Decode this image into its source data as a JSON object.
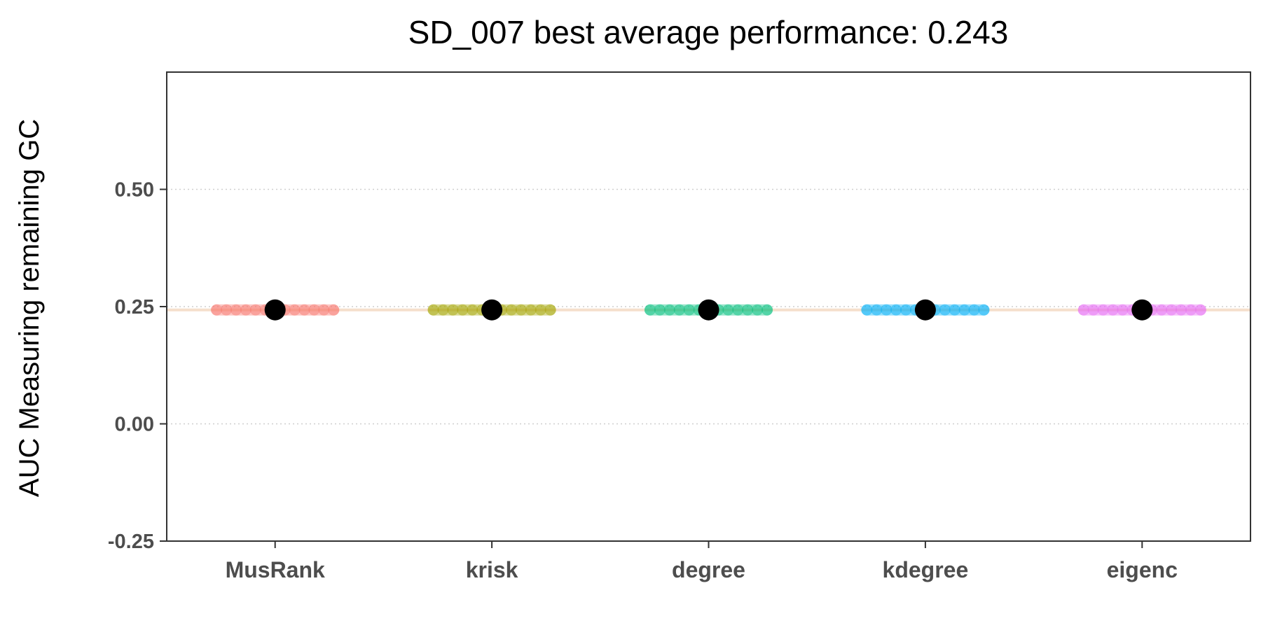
{
  "chart_data": {
    "type": "scatter",
    "title": "SD_007 best average performance: 0.243",
    "xlabel": "",
    "ylabel": "AUC Measuring remaining GC",
    "categories": [
      "MusRank",
      "krisk",
      "degree",
      "kdegree",
      "eigenc"
    ],
    "ylim": [
      -0.25,
      0.75
    ],
    "yticks": [
      -0.25,
      0.0,
      0.25,
      0.5
    ],
    "ytick_labels": [
      "-0.25",
      "0.00",
      "0.25",
      "0.50"
    ],
    "grid": "horizontal dotted",
    "reference_line": {
      "value": 0.243,
      "color": "#f5dfcc"
    },
    "series": [
      {
        "category": "MusRank",
        "color": "#f8766d",
        "points": 0.243,
        "mean": 0.243
      },
      {
        "category": "krisk",
        "color": "#a3a500",
        "points": 0.243,
        "mean": 0.243
      },
      {
        "category": "degree",
        "color": "#00bf7d",
        "points": 0.243,
        "mean": 0.243
      },
      {
        "category": "kdegree",
        "color": "#00b0f6",
        "points": 0.243,
        "mean": 0.243
      },
      {
        "category": "eigenc",
        "color": "#e76bf3",
        "points": 0.243,
        "mean": 0.243
      }
    ],
    "mean_color": "#000000"
  }
}
